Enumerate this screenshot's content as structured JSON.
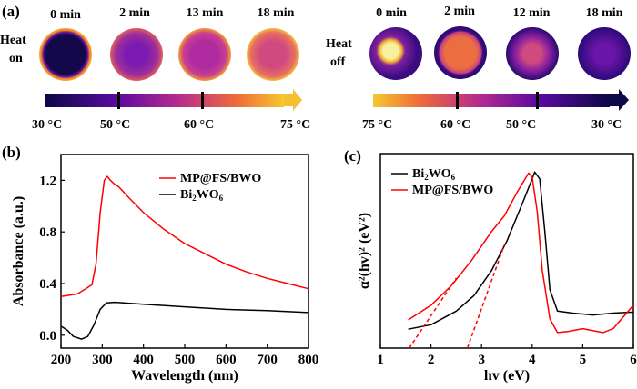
{
  "panel_a": {
    "label": "(a)",
    "heat_on": {
      "label_line1": "Heat",
      "label_line2": "on",
      "times": [
        "0 min",
        "2 min",
        "13 min",
        "18 min"
      ],
      "scale_labels": [
        "30 °C",
        "50 °C",
        "60 °C",
        "75 °C"
      ]
    },
    "heat_off": {
      "label_line1": "Heat",
      "label_line2": "off",
      "times": [
        "0 min",
        "2 min",
        "12 min",
        "18 min"
      ],
      "scale_labels": [
        "75 °C",
        "60 °C",
        "50 °C",
        "30 °C"
      ]
    }
  },
  "chart_data": [
    {
      "panel": "(b)",
      "type": "line",
      "xlabel": "Wavelength (nm)",
      "ylabel": "Absorbance (a.u.)",
      "xlim": [
        200,
        800
      ],
      "ylim": [
        -0.1,
        1.4
      ],
      "xticks": [
        "200",
        "300",
        "400",
        "500",
        "600",
        "700",
        "800"
      ],
      "yticks": [
        "0.0",
        "0.4",
        "0.8",
        "1.2"
      ],
      "legend_position": "top-right",
      "series": [
        {
          "name": "MP@FS/BWO",
          "color": "#ff0000",
          "x": [
            200,
            240,
            260,
            275,
            285,
            295,
            305,
            312,
            320,
            330,
            340,
            360,
            400,
            450,
            500,
            550,
            600,
            650,
            700,
            750,
            800
          ],
          "y": [
            0.3,
            0.32,
            0.36,
            0.39,
            0.55,
            0.95,
            1.2,
            1.23,
            1.2,
            1.17,
            1.15,
            1.08,
            0.95,
            0.82,
            0.71,
            0.63,
            0.55,
            0.49,
            0.44,
            0.4,
            0.36
          ]
        },
        {
          "name": "Bi2WO6",
          "color": "#000000",
          "x": [
            200,
            215,
            230,
            250,
            265,
            280,
            295,
            310,
            330,
            400,
            500,
            600,
            700,
            800
          ],
          "y": [
            0.07,
            0.04,
            -0.01,
            -0.03,
            -0.01,
            0.08,
            0.2,
            0.25,
            0.255,
            0.24,
            0.22,
            0.2,
            0.19,
            0.175
          ]
        }
      ]
    },
    {
      "panel": "(c)",
      "type": "line",
      "xlabel": "hv (eV)",
      "ylabel": "α²(hv)² (eV²)",
      "xlim": [
        1,
        6
      ],
      "ylim": [
        0,
        1
      ],
      "xticks": [
        "1",
        "2",
        "3",
        "4",
        "5",
        "6"
      ],
      "legend_position": "top-left",
      "series": [
        {
          "name": "Bi2WO6",
          "color": "#000000",
          "x": [
            1.55,
            2.0,
            2.5,
            2.85,
            3.2,
            3.5,
            3.8,
            4.0,
            4.05,
            4.15,
            4.25,
            4.35,
            4.5,
            4.8,
            5.2,
            5.6,
            6.0
          ],
          "y": [
            0.097,
            0.12,
            0.19,
            0.27,
            0.4,
            0.55,
            0.74,
            0.87,
            0.905,
            0.87,
            0.6,
            0.3,
            0.19,
            0.18,
            0.17,
            0.18,
            0.185
          ]
        },
        {
          "name": "MP@FS/BWO",
          "color": "#ff0000",
          "x": [
            1.55,
            2.0,
            2.4,
            2.8,
            3.2,
            3.45,
            3.7,
            3.93,
            4.0,
            4.1,
            4.2,
            4.35,
            4.5,
            4.7,
            5.0,
            5.4,
            5.6,
            6.0
          ],
          "y": [
            0.145,
            0.22,
            0.32,
            0.45,
            0.6,
            0.68,
            0.8,
            0.9,
            0.88,
            0.7,
            0.4,
            0.15,
            0.08,
            0.085,
            0.1,
            0.08,
            0.1,
            0.22
          ]
        }
      ],
      "tangent_lines": [
        {
          "x": [
            1.57,
            2.5
          ],
          "y": [
            0,
            0.36
          ]
        },
        {
          "x": [
            2.72,
            3.45
          ],
          "y": [
            0,
            0.53
          ]
        }
      ]
    }
  ]
}
